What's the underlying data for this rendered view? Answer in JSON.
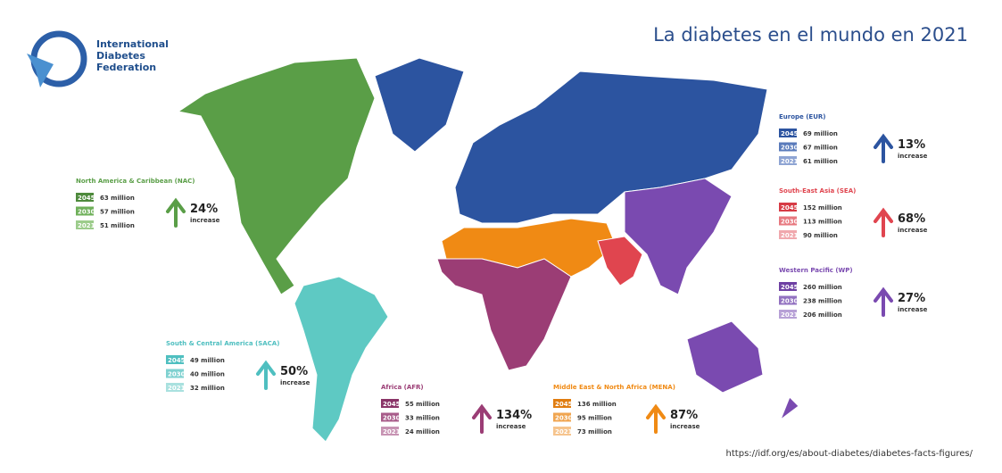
{
  "header": {
    "logo": [
      "International",
      "Diabetes",
      "Federation"
    ],
    "title": "La diabetes en el mundo en 2021"
  },
  "regions": [
    {
      "title": "North America & Caribbean (NAC)",
      "rows": [
        {
          "year": "2045",
          "value": "63 million"
        },
        {
          "year": "2030",
          "value": "57 million"
        },
        {
          "year": "2021",
          "value": "51 million"
        }
      ],
      "percent": "24%",
      "note": "increase"
    },
    {
      "title": "South & Central America (SACA)",
      "rows": [
        {
          "year": "2045",
          "value": "49 million"
        },
        {
          "year": "2030",
          "value": "40 million"
        },
        {
          "year": "2021",
          "value": "32 million"
        }
      ],
      "percent": "50%",
      "note": "increase"
    },
    {
      "title": "Africa (AFR)",
      "rows": [
        {
          "year": "2045",
          "value": "55 million"
        },
        {
          "year": "2030",
          "value": "33 million"
        },
        {
          "year": "2021",
          "value": "24 million"
        }
      ],
      "percent": "134%",
      "note": "increase"
    },
    {
      "title": "Middle East & North Africa (MENA)",
      "rows": [
        {
          "year": "2045",
          "value": "136 million"
        },
        {
          "year": "2030",
          "value": "95 million"
        },
        {
          "year": "2021",
          "value": "73 million"
        }
      ],
      "percent": "87%",
      "note": "increase"
    },
    {
      "title": "Europe (EUR)",
      "rows": [
        {
          "year": "2045",
          "value": "69 million"
        },
        {
          "year": "2030",
          "value": "67 million"
        },
        {
          "year": "2021",
          "value": "61 million"
        }
      ],
      "percent": "13%",
      "note": "increase"
    },
    {
      "title": "South-East Asia (SEA)",
      "rows": [
        {
          "year": "2045",
          "value": "152 million"
        },
        {
          "year": "2030",
          "value": "113 million"
        },
        {
          "year": "2021",
          "value": "90 million"
        }
      ],
      "percent": "68%",
      "note": "increase"
    },
    {
      "title": "Western Pacific (WP)",
      "rows": [
        {
          "year": "2045",
          "value": "260 million"
        },
        {
          "year": "2030",
          "value": "238 million"
        },
        {
          "year": "2021",
          "value": "206 million"
        }
      ],
      "percent": "27%",
      "note": "increase"
    }
  ],
  "footer": {
    "url": "https://idf.org/es/about-diabetes/diabetes-facts-figures/"
  }
}
